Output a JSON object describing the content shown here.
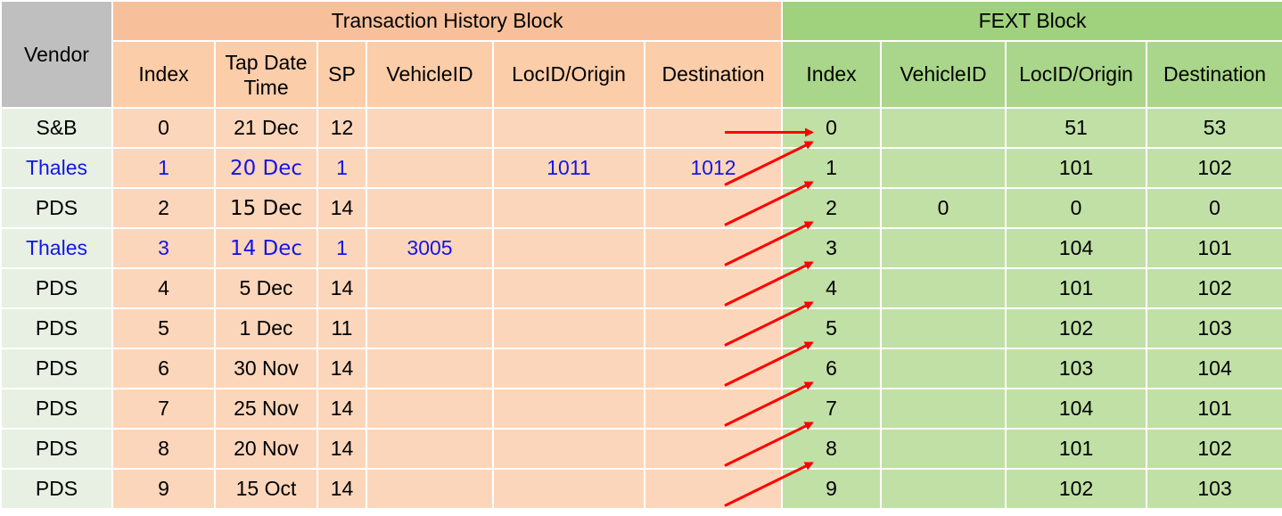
{
  "header": {
    "vendor": "Vendor",
    "th_title": "Transaction History Block",
    "fext_title": "FEXT Block",
    "th_columns": [
      "Index",
      "Tap Date Time",
      "SP",
      "VehicleID",
      "LocID/Origin",
      "Destination"
    ],
    "tap_line1": "Tap Date",
    "tap_line2": "Time",
    "fext_columns": [
      "Index",
      "VehicleID",
      "LocID/Origin",
      "Destination"
    ]
  },
  "rows": [
    {
      "vendor": "S&B",
      "index": "0",
      "date": "21 Dec",
      "sp": "12",
      "vehicle": "",
      "loc": "",
      "dest": "",
      "f_index": "0",
      "f_vehicle": "",
      "f_loc": "51",
      "f_dest": "53"
    },
    {
      "vendor": "Thales",
      "index": "1",
      "date": "20 Dec",
      "sp": "1",
      "vehicle": "",
      "loc": "1011",
      "dest": "1012",
      "f_index": "1",
      "f_vehicle": "",
      "f_loc": "101",
      "f_dest": "102"
    },
    {
      "vendor": "PDS",
      "index": "2",
      "date": "15 Dec",
      "sp": "14",
      "vehicle": "",
      "loc": "",
      "dest": "",
      "f_index": "2",
      "f_vehicle": "0",
      "f_loc": "0",
      "f_dest": "0"
    },
    {
      "vendor": "Thales",
      "index": "3",
      "date": "14 Dec",
      "sp": "1",
      "vehicle": "3005",
      "loc": "",
      "dest": "",
      "f_index": "3",
      "f_vehicle": "",
      "f_loc": "104",
      "f_dest": "101"
    },
    {
      "vendor": "PDS",
      "index": "4",
      "date": "5 Dec",
      "sp": "14",
      "vehicle": "",
      "loc": "",
      "dest": "",
      "f_index": "4",
      "f_vehicle": "",
      "f_loc": "101",
      "f_dest": "102"
    },
    {
      "vendor": "PDS",
      "index": "5",
      "date": "1 Dec",
      "sp": "11",
      "vehicle": "",
      "loc": "",
      "dest": "",
      "f_index": "5",
      "f_vehicle": "",
      "f_loc": "102",
      "f_dest": "103"
    },
    {
      "vendor": "PDS",
      "index": "6",
      "date": "30 Nov",
      "sp": "14",
      "vehicle": "",
      "loc": "",
      "dest": "",
      "f_index": "6",
      "f_vehicle": "",
      "f_loc": "103",
      "f_dest": "104"
    },
    {
      "vendor": "PDS",
      "index": "7",
      "date": "25 Nov",
      "sp": "14",
      "vehicle": "",
      "loc": "",
      "dest": "",
      "f_index": "7",
      "f_vehicle": "",
      "f_loc": "104",
      "f_dest": "101"
    },
    {
      "vendor": "PDS",
      "index": "8",
      "date": "20 Nov",
      "sp": "14",
      "vehicle": "",
      "loc": "",
      "dest": "",
      "f_index": "8",
      "f_vehicle": "",
      "f_loc": "101",
      "f_dest": "102"
    },
    {
      "vendor": "PDS",
      "index": "9",
      "date": "15 Oct",
      "sp": "14",
      "vehicle": "",
      "loc": "",
      "dest": "",
      "f_index": "9",
      "f_vehicle": "",
      "f_loc": "102",
      "f_dest": "103"
    }
  ],
  "colors": {
    "arrow": "#ff0000",
    "thales_text": "#1515e6",
    "th_header": "#f8c09a",
    "fext_header": "#a0d27d"
  }
}
